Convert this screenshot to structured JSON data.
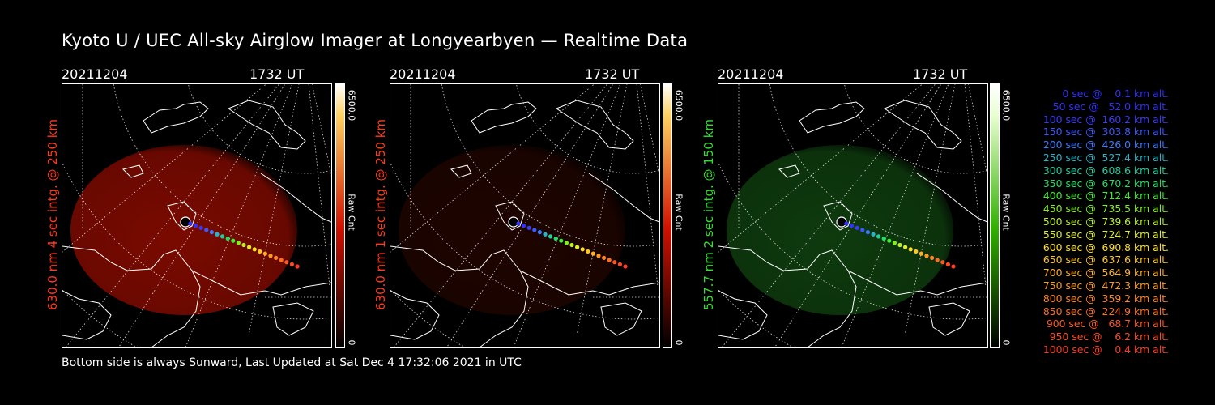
{
  "title": "Kyoto U / UEC All-sky Airglow Imager at Longyearbyen — Realtime Data",
  "footer": "Bottom side is always Sunward, Last Updated at Sat Dec  4 17:32:06 2021 in UTC",
  "panels": [
    {
      "date": "20211204",
      "time": "1732 UT",
      "label": "630.0 nm  4 sec intg. @ 250 km",
      "label_color": "#ff3a1a",
      "cbar_max": "6500.0",
      "cbar_min": "0",
      "cbar_unit": "Raw Cnt",
      "glow_color": "#7a0a00",
      "cbar_top": "#ffd060",
      "cbar_mid": "#d01000"
    },
    {
      "date": "20211204",
      "time": "1732 UT",
      "label": "630.0 nm  1 sec intg. @ 250 km",
      "label_color": "#ff3a1a",
      "cbar_max": "6500.0",
      "cbar_min": "0",
      "cbar_unit": "Raw Cnt",
      "glow_color": "#1e0400",
      "cbar_top": "#ffd060",
      "cbar_mid": "#d01000"
    },
    {
      "date": "20211204",
      "time": "1732 UT",
      "label": "557.7 nm  2 sec intg. @ 150 km",
      "label_color": "#30e030",
      "cbar_max": "6500.0",
      "cbar_min": "0",
      "cbar_unit": "Raw Cnt",
      "glow_color": "#0e3a0e",
      "cbar_top": "#e8ffd0",
      "cbar_mid": "#30b000"
    }
  ],
  "legend": [
    {
      "text": "0 sec @    0.1 km alt.",
      "color": "#3030ff"
    },
    {
      "text": "50 sec @   52.0 km alt.",
      "color": "#3030ff"
    },
    {
      "text": "100 sec @  160.2 km alt.",
      "color": "#3a3aff"
    },
    {
      "text": "150 sec @  303.8 km alt.",
      "color": "#3a5aff"
    },
    {
      "text": "200 sec @  426.0 km alt.",
      "color": "#3a7aff"
    },
    {
      "text": "250 sec @  527.4 km alt.",
      "color": "#28b4c8"
    },
    {
      "text": "300 sec @  608.6 km alt.",
      "color": "#20d0a0"
    },
    {
      "text": "350 sec @  670.2 km alt.",
      "color": "#20e060"
    },
    {
      "text": "400 sec @  712.4 km alt.",
      "color": "#40ee30"
    },
    {
      "text": "450 sec @  735.5 km alt.",
      "color": "#80f020"
    },
    {
      "text": "500 sec @  739.6 km alt.",
      "color": "#b8f020"
    },
    {
      "text": "550 sec @  724.7 km alt.",
      "color": "#e0f020"
    },
    {
      "text": "600 sec @  690.8 km alt.",
      "color": "#ffe020"
    },
    {
      "text": "650 sec @  637.6 km alt.",
      "color": "#ffc820"
    },
    {
      "text": "700 sec @  564.9 km alt.",
      "color": "#ffb020"
    },
    {
      "text": "750 sec @  472.3 km alt.",
      "color": "#ff9a20"
    },
    {
      "text": "800 sec @  359.2 km alt.",
      "color": "#ff8420"
    },
    {
      "text": "850 sec @  224.9 km alt.",
      "color": "#ff6e20"
    },
    {
      "text": "900 sec @   68.7 km alt.",
      "color": "#ff5820"
    },
    {
      "text": "950 sec @    6.2 km alt.",
      "color": "#ff4a20"
    },
    {
      "text": "1000 sec @    0.4 km alt.",
      "color": "#ff3a20"
    }
  ]
}
